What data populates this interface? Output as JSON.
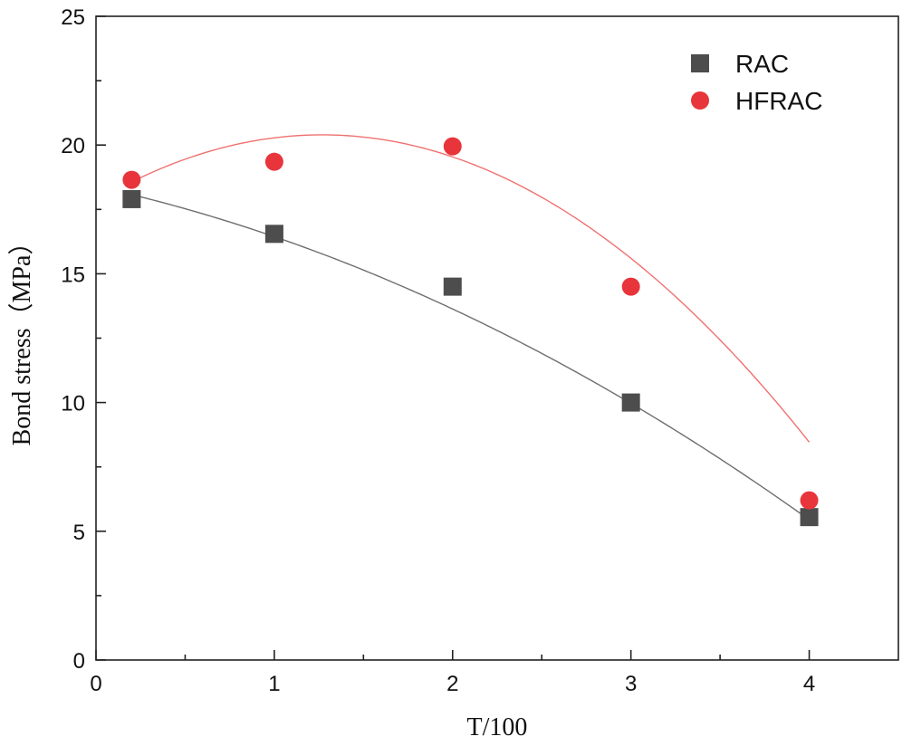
{
  "chart_data": {
    "type": "scatter",
    "title": "",
    "xlabel": "T/100",
    "ylabel": "Bond stress（MPa）",
    "xlim": [
      0,
      4.5
    ],
    "ylim": [
      0,
      25
    ],
    "xticks": [
      0,
      1,
      2,
      3,
      4
    ],
    "xticks_minor": [
      0.5,
      1.5,
      2.5,
      3.5
    ],
    "yticks": [
      0,
      5,
      10,
      15,
      20,
      25
    ],
    "grid": false,
    "legend_position": "top-right",
    "series": [
      {
        "name": "RAC",
        "marker": "square",
        "color": "#4d4d4d",
        "fit_color": "#6e6e6e",
        "x": [
          0.2,
          1,
          2,
          3,
          4
        ],
        "y": [
          17.9,
          16.55,
          14.5,
          10.0,
          5.55
        ],
        "fit": {
          "kind": "polynomial",
          "coefficients": [
            18.397,
            -1.5275,
            -0.4275
          ]
        }
      },
      {
        "name": "HFRAC",
        "marker": "circle",
        "color": "#e8353b",
        "fit_color": "#f07070",
        "x": [
          0.2,
          1,
          2,
          3,
          4
        ],
        "y": [
          18.65,
          19.35,
          19.95,
          14.5,
          6.2
        ],
        "fit": {
          "kind": "polynomial",
          "coefficients": [
            17.82,
            4.06,
            -1.6
          ]
        }
      }
    ]
  }
}
